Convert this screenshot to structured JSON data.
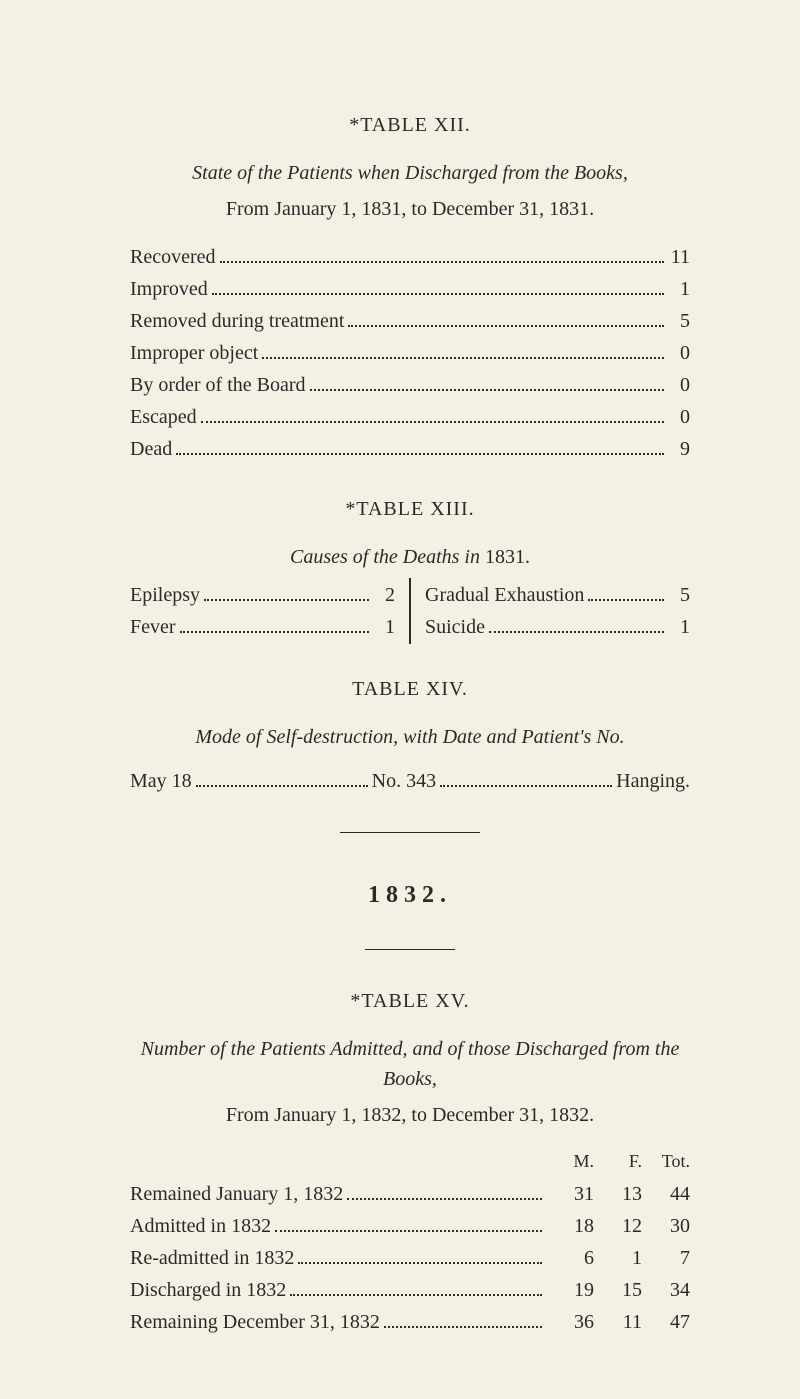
{
  "colors": {
    "background": "#f4f0e4",
    "text": "#2a2a2a"
  },
  "t12": {
    "heading": "*TABLE XII.",
    "sub_italic_prefix": "State of the Patients when Discharged from the Books,",
    "sub_roman": "From January 1, 1831, to December 31, 1831.",
    "rows": [
      {
        "label": "Recovered",
        "value": "11"
      },
      {
        "label": "Improved",
        "value": "1"
      },
      {
        "label": "Removed during treatment",
        "value": "5"
      },
      {
        "label": "Improper object",
        "value": "0"
      },
      {
        "label": "By order of the Board",
        "value": "0"
      },
      {
        "label": "Escaped",
        "value": "0"
      },
      {
        "label": "Dead",
        "value": "9"
      }
    ]
  },
  "t13": {
    "heading": "*TABLE XIII.",
    "sub_italic": "Causes of the Deaths in",
    "sub_year": " 1831.",
    "left": [
      {
        "label": "Epilepsy",
        "value": "2"
      },
      {
        "label": "Fever",
        "value": "1"
      }
    ],
    "right": [
      {
        "label": "Gradual Exhaustion",
        "value": "5"
      },
      {
        "label": "Suicide",
        "value": "1"
      }
    ]
  },
  "t14": {
    "heading": "TABLE XIV.",
    "sub_italic": "Mode of Self-destruction, with Date and Patient's No.",
    "seg1": "May 18",
    "seg2": "No. 343",
    "seg3": "Hanging."
  },
  "year": "1832.",
  "t15": {
    "heading": "*TABLE XV.",
    "sub_italic": "Number of the Patients Admitted, and of those Discharged from the Books,",
    "sub_roman": "From January 1, 1832, to December 31, 1832.",
    "col_headers": [
      "M.",
      "F.",
      "Tot."
    ],
    "rows": [
      {
        "label": "Remained January 1, 1832",
        "m": "31",
        "f": "13",
        "t": "44"
      },
      {
        "label": "Admitted in 1832",
        "m": "18",
        "f": "12",
        "t": "30"
      },
      {
        "label": "Re-admitted in 1832",
        "m": "6",
        "f": "1",
        "t": "7"
      },
      {
        "label": "Discharged in 1832",
        "m": "19",
        "f": "15",
        "t": "34"
      },
      {
        "label": "Remaining December 31, 1832",
        "m": "36",
        "f": "11",
        "t": "47"
      }
    ]
  }
}
